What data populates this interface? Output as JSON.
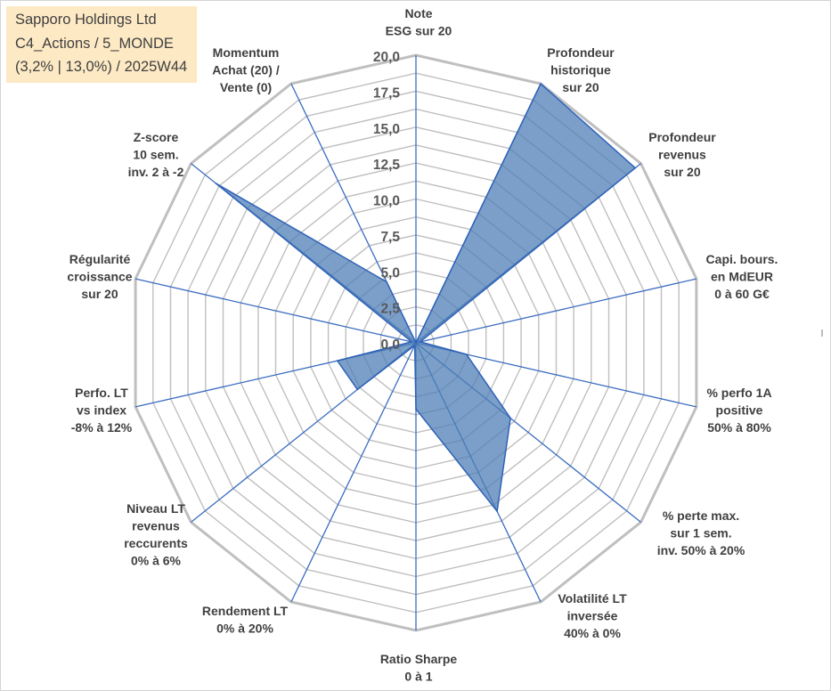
{
  "title": {
    "line1": "Sapporo Holdings Ltd",
    "line2": "C4_Actions / 5_MONDE",
    "line3": "(3,2% | 13,0%) / 2025W44"
  },
  "chart_data": {
    "type": "radar",
    "max": 20,
    "tick_values": [
      0,
      2.5,
      5,
      7.5,
      10,
      12.5,
      15,
      17.5,
      20
    ],
    "tick_labels": [
      "0,0",
      "2,5",
      "5,0",
      "7,5",
      "10,0",
      "12,5",
      "15,0",
      "17,5",
      "20,0"
    ],
    "axes": [
      {
        "label": [
          "Note",
          "ESG sur 20"
        ],
        "value": 0
      },
      {
        "label": [
          "Profondeur",
          "historique",
          "sur 20"
        ],
        "value": 20
      },
      {
        "label": [
          "Profondeur",
          "revenus",
          "sur 20"
        ],
        "value": 19.5
      },
      {
        "label": [
          "Capi. bours.",
          "en MdEUR",
          "0 à 60 G€"
        ],
        "value": 0.3
      },
      {
        "label": [
          "% perfo 1A",
          "positive",
          "50% à 80%"
        ],
        "value": 3.6
      },
      {
        "label": [
          "% perte max.",
          "sur 1 sem.",
          "inv. 50% à 20%"
        ],
        "value": 8.4
      },
      {
        "label": [
          "Volatilité LT",
          "inversée",
          "40% à 0%"
        ],
        "value": 13.0
      },
      {
        "label": [
          "Ratio Sharpe",
          "0 à 1"
        ],
        "value": 4.6
      },
      {
        "label": [
          "Rendement LT",
          "0% à 20%"
        ],
        "value": 0.2
      },
      {
        "label": [
          "Niveau LT",
          "revenus",
          "reccurents",
          "0% à 6%"
        ],
        "value": 5.2
      },
      {
        "label": [
          "Perfo. LT",
          "vs index",
          "-8% à 12%"
        ],
        "value": 5.6
      },
      {
        "label": [
          "Régularité",
          "croissance",
          "sur 20"
        ],
        "value": 0.3
      },
      {
        "label": [
          "Z-score",
          "10 sem.",
          "inv. 2 à -2"
        ],
        "value": 17.8
      },
      {
        "label": [
          "Momentum",
          "Achat (20) /",
          "Vente (0)"
        ],
        "value": 4.7
      }
    ],
    "series": [
      {
        "name": "Sapporo Holdings Ltd"
      }
    ],
    "colors": {
      "fill": "#4f7fb5",
      "line": "#2e62b8",
      "grid": "#bfbfbf",
      "spoke": "#3a6cc0"
    }
  }
}
